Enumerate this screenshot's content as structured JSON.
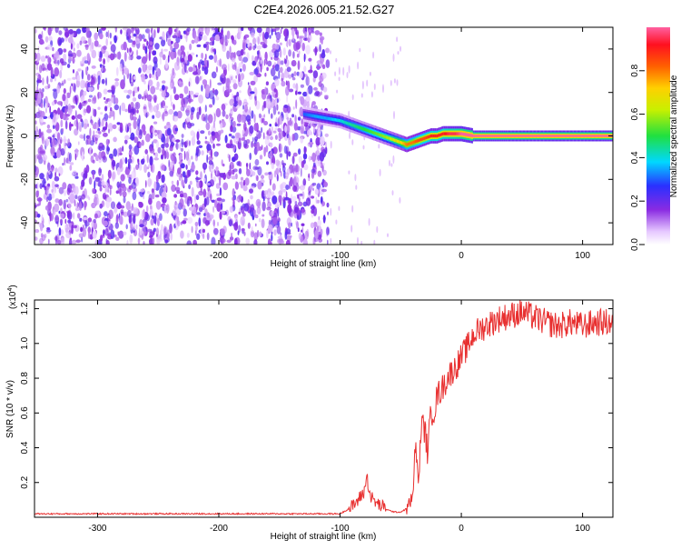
{
  "figure": {
    "title": "C2E4.2026.005.21.52.G27"
  },
  "chart_data": [
    {
      "type": "heatmap",
      "title": "C2E4.2026.005.21.52.G27",
      "xlabel": "Height of straight line (km)",
      "ylabel": "Frequency (Hz)",
      "xlim": [
        -352,
        125
      ],
      "ylim": [
        -50,
        50
      ],
      "x_ticks": [
        -300,
        -200,
        -100,
        0,
        100
      ],
      "x_tick_labels": [
        "-300",
        "-200",
        "-100",
        "0",
        "100"
      ],
      "y_ticks": [
        -40,
        -20,
        0,
        20,
        40
      ],
      "y_tick_labels": [
        "-40",
        "-20",
        "0",
        "20",
        "40"
      ],
      "grid": false,
      "noise_region_x": [
        -352,
        -110
      ],
      "noise_level": 0.15,
      "signal_ridge": {
        "x": [
          -130,
          -120,
          -110,
          -100,
          -90,
          -80,
          -70,
          -60,
          -50,
          -45,
          -40,
          -35,
          -30,
          -25,
          -20,
          -15,
          -10,
          -5,
          0,
          10,
          20,
          50,
          100,
          125
        ],
        "y": [
          10,
          9,
          8,
          7,
          5,
          3,
          1,
          -1,
          -3,
          -4,
          -3,
          -2,
          -1,
          0,
          0,
          1,
          1,
          1,
          1,
          0,
          0,
          0,
          0,
          0
        ],
        "amplitude": [
          0.3,
          0.35,
          0.35,
          0.4,
          0.45,
          0.5,
          0.55,
          0.6,
          0.7,
          0.8,
          0.8,
          0.85,
          0.85,
          0.9,
          0.9,
          0.9,
          0.95,
          0.95,
          1.0,
          1.0,
          1.0,
          1.0,
          1.0,
          1.0
        ]
      },
      "colorbar": {
        "label": "Normalized spectral amplitude",
        "range": [
          0,
          1
        ],
        "ticks": [
          0.0,
          0.2,
          0.4,
          0.6,
          0.8
        ],
        "tick_labels": [
          "0.0",
          "0.2",
          "0.4",
          "0.6",
          "0.8"
        ],
        "colormap": "rainbow (white → purple → blue → cyan → green → yellow → orange → red → pink)"
      }
    },
    {
      "type": "line",
      "title": "",
      "xlabel": "Height of straight line (km)",
      "ylabel": "SNR (10 * v/v)",
      "y_scale_label": "(x10",
      "y_scale_exponent": "4",
      "y_scale_suffix": ")",
      "xlim": [
        -352,
        125
      ],
      "ylim": [
        0,
        1.25
      ],
      "x_ticks": [
        -300,
        -200,
        -100,
        0,
        100
      ],
      "x_tick_labels": [
        "-300",
        "-200",
        "-100",
        "0",
        "100"
      ],
      "y_ticks": [
        0.2,
        0.4,
        0.6,
        0.8,
        1.0,
        1.2
      ],
      "y_tick_labels": [
        "0.2",
        "0.4",
        "0.6",
        "0.8",
        "1.0",
        "1.2"
      ],
      "grid": false,
      "series": [
        {
          "color": "#e83030",
          "x": [
            -352,
            -300,
            -250,
            -200,
            -150,
            -120,
            -100,
            -95,
            -90,
            -85,
            -80,
            -78,
            -75,
            -70,
            -65,
            -60,
            -55,
            -50,
            -45,
            -40,
            -38,
            -35,
            -33,
            -30,
            -28,
            -25,
            -22,
            -20,
            -15,
            -10,
            -5,
            0,
            5,
            10,
            15,
            20,
            25,
            30,
            40,
            50,
            60,
            70,
            80,
            90,
            100,
            110,
            125
          ],
          "y": [
            0.02,
            0.02,
            0.02,
            0.02,
            0.02,
            0.02,
            0.02,
            0.04,
            0.06,
            0.1,
            0.15,
            0.24,
            0.12,
            0.08,
            0.06,
            0.04,
            0.03,
            0.03,
            0.05,
            0.12,
            0.4,
            0.2,
            0.55,
            0.5,
            0.38,
            0.6,
            0.62,
            0.7,
            0.75,
            0.82,
            0.86,
            0.92,
            0.98,
            1.05,
            1.08,
            1.1,
            1.12,
            1.14,
            1.16,
            1.18,
            1.15,
            1.12,
            1.1,
            1.12,
            1.1,
            1.12,
            1.12
          ]
        }
      ]
    }
  ]
}
